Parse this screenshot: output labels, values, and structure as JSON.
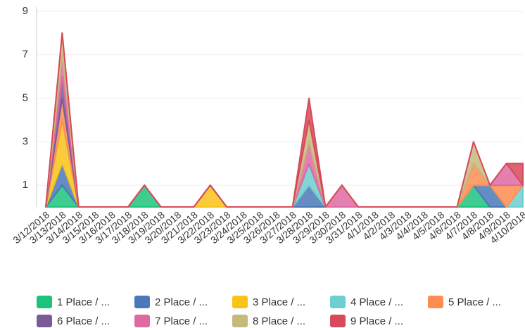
{
  "chart_data": {
    "type": "stacked_area",
    "categories": [
      "3/12/2018",
      "3/13/2018",
      "3/14/2018",
      "3/15/2018",
      "3/16/2018",
      "3/17/2018",
      "3/18/2018",
      "3/19/2018",
      "3/20/2018",
      "3/21/2018",
      "3/22/2018",
      "3/23/2018",
      "3/24/2018",
      "3/25/2018",
      "3/26/2018",
      "3/27/2018",
      "3/28/2018",
      "3/29/2018",
      "3/30/2018",
      "3/31/2018",
      "4/1/2018",
      "4/2/2018",
      "4/3/2018",
      "4/4/2018",
      "4/5/2018",
      "4/6/2018",
      "4/7/2018",
      "4/8/2018",
      "4/9/2018",
      "4/10/2018"
    ],
    "series": [
      {
        "name": "1 Place / ...",
        "color": "#1dc37c",
        "values": [
          0,
          1,
          0,
          0,
          0,
          0,
          1,
          0,
          0,
          0,
          0,
          0,
          0,
          0,
          0,
          0,
          0,
          0,
          0,
          0,
          0,
          0,
          0,
          0,
          0,
          0,
          1,
          0,
          0,
          0
        ]
      },
      {
        "name": "2 Place / ...",
        "color": "#4a78b8",
        "values": [
          0,
          1,
          0,
          0,
          0,
          0,
          0,
          0,
          0,
          0,
          0,
          0,
          0,
          0,
          0,
          0,
          1,
          0,
          0,
          0,
          0,
          0,
          0,
          0,
          0,
          0,
          0,
          1,
          0,
          0
        ]
      },
      {
        "name": "3 Place / ...",
        "color": "#f9c318",
        "values": [
          0,
          2,
          0,
          0,
          0,
          0,
          0,
          0,
          0,
          0,
          1,
          0,
          0,
          0,
          0,
          0,
          0,
          0,
          0,
          0,
          0,
          0,
          0,
          0,
          0,
          0,
          0,
          0,
          0,
          0
        ]
      },
      {
        "name": "4 Place / ...",
        "color": "#6ccfd0",
        "values": [
          0,
          0,
          0,
          0,
          0,
          0,
          0,
          0,
          0,
          0,
          0,
          0,
          0,
          0,
          0,
          0,
          1,
          0,
          0,
          0,
          0,
          0,
          0,
          0,
          0,
          0,
          0,
          0,
          0,
          1
        ]
      },
      {
        "name": "5 Place / ...",
        "color": "#ff8d50",
        "values": [
          0,
          1,
          0,
          0,
          0,
          0,
          0,
          0,
          0,
          0,
          0,
          0,
          0,
          0,
          0,
          0,
          0,
          0,
          0,
          0,
          0,
          0,
          0,
          0,
          0,
          0,
          1,
          0,
          1,
          0
        ]
      },
      {
        "name": "6 Place / ...",
        "color": "#7b5a97",
        "values": [
          0,
          1,
          0,
          0,
          0,
          0,
          0,
          0,
          0,
          0,
          0,
          0,
          0,
          0,
          0,
          0,
          0,
          0,
          0,
          0,
          0,
          0,
          0,
          0,
          0,
          0,
          0,
          0,
          0,
          0
        ]
      },
      {
        "name": "7 Place / ...",
        "color": "#de6aa2",
        "values": [
          0,
          1,
          0,
          0,
          0,
          0,
          0,
          0,
          0,
          0,
          0,
          0,
          0,
          0,
          0,
          0,
          1,
          0,
          1,
          0,
          0,
          0,
          0,
          0,
          0,
          0,
          0,
          0,
          1,
          0
        ]
      },
      {
        "name": "8 Place / ...",
        "color": "#c7b87c",
        "values": [
          0,
          1,
          0,
          0,
          0,
          0,
          0,
          0,
          0,
          0,
          0,
          0,
          0,
          0,
          0,
          0,
          1,
          0,
          0,
          0,
          0,
          0,
          0,
          0,
          0,
          0,
          1,
          0,
          0,
          0
        ]
      },
      {
        "name": "9 Place / ...",
        "color": "#d64a5b",
        "values": [
          0,
          0,
          0,
          0,
          0,
          0,
          0,
          0,
          0,
          0,
          0,
          0,
          0,
          0,
          0,
          0,
          1,
          0,
          0,
          0,
          0,
          0,
          0,
          0,
          0,
          0,
          0,
          0,
          0,
          1
        ]
      }
    ],
    "ylim": [
      0,
      9
    ],
    "yticks": [
      1,
      3,
      5,
      7,
      9
    ],
    "grid": true
  }
}
